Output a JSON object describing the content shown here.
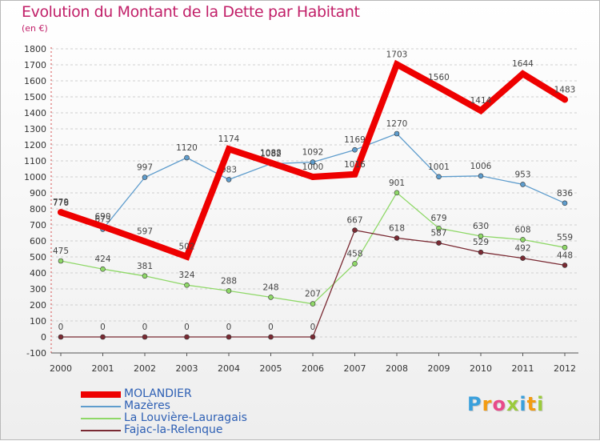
{
  "header": {
    "title": "Evolution du Montant de la Dette par Habitant",
    "unit": "(en €)"
  },
  "chart_data": {
    "type": "line",
    "title": "Evolution du Montant de la Dette par Habitant",
    "ylabel": "(en €)",
    "xlabel": "",
    "categories": [
      "2000",
      "2001",
      "2002",
      "2003",
      "2004",
      "2005",
      "2006",
      "2007",
      "2008",
      "2009",
      "2010",
      "2011",
      "2012"
    ],
    "ylim": [
      -100,
      1800
    ],
    "yticks": [
      -100,
      0,
      100,
      200,
      300,
      400,
      500,
      600,
      700,
      800,
      900,
      1000,
      1100,
      1200,
      1300,
      1400,
      1500,
      1600,
      1700,
      1800
    ],
    "grid": "horizontal dashed",
    "legend_position": "bottom-left",
    "series": [
      {
        "name": "Mazères",
        "color": "#5f9dcd",
        "values": [
          776,
          673,
          997,
          1120,
          983,
          1082,
          1092,
          1169,
          1270,
          1001,
          1006,
          953,
          836
        ]
      },
      {
        "name": "La Louvière-Lauragais",
        "color": "#8fd868",
        "values": [
          475,
          424,
          381,
          324,
          288,
          248,
          207,
          458,
          901,
          679,
          630,
          608,
          559
        ]
      },
      {
        "name": "Fajac-la-Relenque",
        "color": "#7a2a33",
        "values": [
          0,
          0,
          0,
          0,
          0,
          0,
          0,
          667,
          618,
          587,
          529,
          492,
          448
        ]
      },
      {
        "name": "MOLANDIER",
        "color": "#ee0000",
        "values": [
          779,
          690,
          597,
          502,
          1174,
          1088,
          1000,
          1016,
          1703,
          1560,
          1414,
          1644,
          1483
        ]
      }
    ]
  },
  "legend": [
    {
      "label": "MOLANDIER",
      "color": "#ee0000",
      "highlight": true
    },
    {
      "label": "Mazères",
      "color": "#5f9dcd",
      "highlight": false
    },
    {
      "label": "La Louvière-Lauragais",
      "color": "#8fd868",
      "highlight": false
    },
    {
      "label": "Fajac-la-Relenque",
      "color": "#7a2a33",
      "highlight": false
    }
  ],
  "logo": {
    "letters": [
      "P",
      "r",
      "o",
      "x",
      "i",
      "t",
      "i"
    ],
    "colors": [
      "#3aa0dc",
      "#f39c12",
      "#e84a8a",
      "#9bcb3b",
      "#3aa0dc",
      "#f39c12",
      "#9bcb3b"
    ]
  }
}
